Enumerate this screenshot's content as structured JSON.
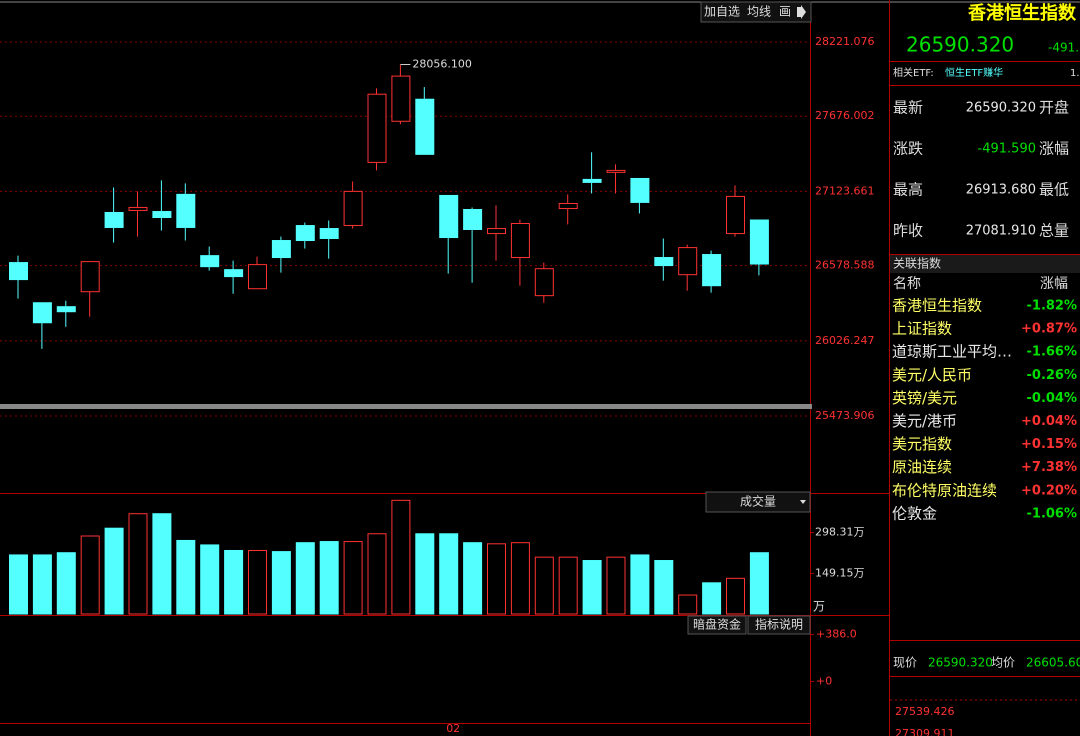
{
  "toolbar": {
    "buttons": [
      "加自选",
      "均线",
      "画"
    ]
  },
  "chart_data": {
    "type": "candlestick",
    "categories": [
      null,
      null,
      null,
      null,
      null,
      null,
      null,
      null,
      null,
      null,
      null,
      null,
      null,
      null,
      null,
      null,
      null,
      null,
      "02",
      null,
      null,
      null,
      null,
      null,
      null,
      null,
      null,
      null,
      null,
      null,
      null,
      null
    ],
    "open": [
      26601,
      26306,
      26277,
      26387,
      26969,
      26984,
      26976,
      27102,
      26652,
      26549,
      26409,
      26763,
      26873,
      26851,
      26873,
      27337,
      27639,
      27801,
      27094,
      26991,
      26814,
      26638,
      26358,
      26998,
      27212,
      27264,
      27219,
      26638,
      26512,
      26660,
      26814,
      26913.68
    ],
    "high": [
      26652,
      26306,
      26321,
      26608,
      27153,
      27124,
      27205,
      27183,
      26719,
      26615,
      26645,
      26792,
      26895,
      26910,
      27197,
      27882,
      28056.1,
      27890,
      27094,
      27006,
      27021,
      26917,
      26601,
      27102,
      27411,
      27322,
      27219,
      26778,
      26733,
      26689,
      27168,
      26913.68
    ],
    "low": [
      26336,
      25967,
      26129,
      26203,
      26748,
      26792,
      26836,
      26763,
      26542,
      26372,
      26409,
      26527,
      26704,
      26630,
      26851,
      27278,
      27617,
      27396,
      26520,
      26453,
      26615,
      26431,
      26306,
      26881,
      27109,
      27109,
      26962,
      26468,
      26394,
      26380,
      26792,
      26507
    ],
    "close": [
      26476,
      26159,
      26240,
      26608,
      26859,
      27006,
      26932,
      26859,
      26571,
      26498,
      26586,
      26638,
      26763,
      26778,
      27124,
      27838,
      27971,
      27396,
      26785,
      26844,
      26851,
      26888,
      26556,
      27035,
      27190,
      27278,
      27043,
      26579,
      26711,
      26431,
      27087,
      26590.32
    ],
    "up_color": "#ff3232",
    "down_color": "#54ffff",
    "ylim": [
      25473.906,
      28383
    ],
    "yticks": [
      25473.906,
      26026.247,
      26578.588,
      27123.661,
      27676.002,
      28221.076
    ],
    "annotation": "28056.100",
    "volume": {
      "title": "成交量",
      "unit": "万",
      "ylim": [
        0,
        440
      ],
      "values": [
        216.6,
        216.6,
        224.7,
        286.0,
        314.6,
        367.7,
        367.7,
        269.7,
        253.3,
        232.9,
        232.9,
        228.8,
        261.5,
        265.6,
        265.6,
        294.2,
        416.8,
        294.2,
        294.2,
        261.5,
        257.4,
        261.5,
        208.4,
        208.4,
        196.1,
        208.4,
        216.6,
        196.1,
        69.5,
        114.4,
        130.8,
        224.7
      ],
      "yticks": [
        {
          "value": 149.15,
          "label": "149.15万"
        },
        {
          "value": 298.31,
          "label": "298.31万"
        }
      ]
    },
    "indicator": {
      "buttons": [
        "暗盘资金",
        "指标说明"
      ],
      "ylim": [
        -341,
        539
      ],
      "yticks": [
        {
          "value": 0,
          "label": "+0"
        },
        {
          "value": 386,
          "label": "+386.0"
        }
      ]
    }
  },
  "quote": {
    "title": "香港恒生指数",
    "price": "26590.320",
    "change": "-491.",
    "etf_label": "相关ETF:",
    "etf_name": "恒生ETF赚华",
    "etf_value": "1.",
    "stats": [
      [
        "最新",
        "26590.320",
        "开盘"
      ],
      [
        "涨跌",
        "-491.590",
        "涨幅"
      ],
      [
        "最高",
        "26913.680",
        "最低"
      ],
      [
        "昨收",
        "27081.910",
        "总量"
      ]
    ],
    "related": {
      "title": "关联指数",
      "header": [
        "名称",
        "涨幅"
      ],
      "rows": [
        {
          "name": "香港恒生指数",
          "change": "-1.82%",
          "color": "#ffff66"
        },
        {
          "name": "上证指数",
          "change": "+0.87%",
          "color": "#ffff66"
        },
        {
          "name": "道琼斯工业平均…",
          "change": "-1.66%",
          "color": "#e8e8e8"
        },
        {
          "name": "美元/人民币",
          "change": "-0.26%",
          "color": "#ffff66"
        },
        {
          "name": "英镑/美元",
          "change": "-0.04%",
          "color": "#ffff66"
        },
        {
          "name": "美元/港币",
          "change": "+0.04%",
          "color": "#e8e8e8"
        },
        {
          "name": "美元指数",
          "change": "+0.15%",
          "color": "#ffff66"
        },
        {
          "name": "原油连续",
          "change": "+7.38%",
          "color": "#ffff66"
        },
        {
          "name": "布伦特原油连续",
          "change": "+0.20%",
          "color": "#ffff66"
        },
        {
          "name": "伦敦金",
          "change": "-1.06%",
          "color": "#e8e8e8"
        }
      ]
    },
    "intraday": {
      "price_label": "现价",
      "price": "26590.320",
      "avg_label": "均价",
      "avg": "26605.60",
      "ticks": [
        "27539.426",
        "27309.911"
      ]
    }
  }
}
